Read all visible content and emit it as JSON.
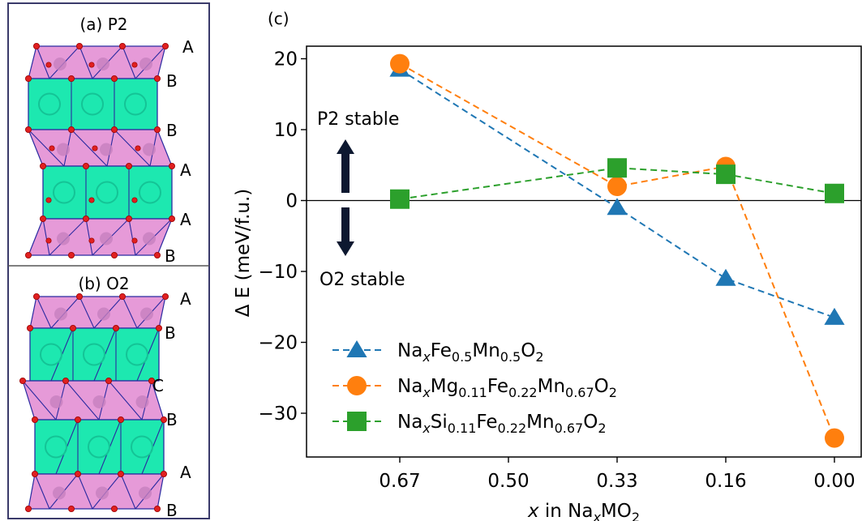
{
  "panels": {
    "a": {
      "label": "(a) P2",
      "layers": [
        "A",
        "B",
        "B",
        "A",
        "A",
        "B"
      ]
    },
    "b": {
      "label": "(b) O2",
      "layers": [
        "A",
        "B",
        "C",
        "B",
        "A",
        "B"
      ]
    },
    "c": {
      "label": "(c)"
    }
  },
  "chart_data": {
    "type": "line",
    "categories": [
      "0.67",
      "0.50",
      "0.33",
      "0.16",
      "0.00"
    ],
    "xlabel": "x in NaxMO2",
    "ylabel": "Δ E (meV/f.u.)",
    "ylim": [
      -36,
      21
    ],
    "yticks": [
      20,
      10,
      0,
      -10,
      -20,
      -30
    ],
    "zero_line": true,
    "annotations": {
      "top": "P2 stable",
      "bottom": "O2 stable"
    },
    "legend_position": "lower-left",
    "series": [
      {
        "name": "NaxFe0.5Mn0.5O2",
        "marker": "triangle",
        "color": "#1f77b4",
        "points": [
          [
            0,
            18.5
          ],
          [
            2,
            -1
          ],
          [
            3,
            -11
          ],
          [
            4,
            -16.5
          ]
        ]
      },
      {
        "name": "NaxMg0.11Fe0.22Mn0.67O2",
        "marker": "circle",
        "color": "#ff7f0e",
        "points": [
          [
            0,
            19.3
          ],
          [
            2,
            2
          ],
          [
            3,
            4.8
          ],
          [
            4,
            -33.5
          ]
        ]
      },
      {
        "name": "NaxSi0.11Fe0.22Mn0.67O2",
        "marker": "square",
        "color": "#2ca02c",
        "points": [
          [
            0,
            0.2
          ],
          [
            2,
            4.6
          ],
          [
            3,
            3.7
          ],
          [
            4,
            1
          ]
        ]
      }
    ]
  }
}
